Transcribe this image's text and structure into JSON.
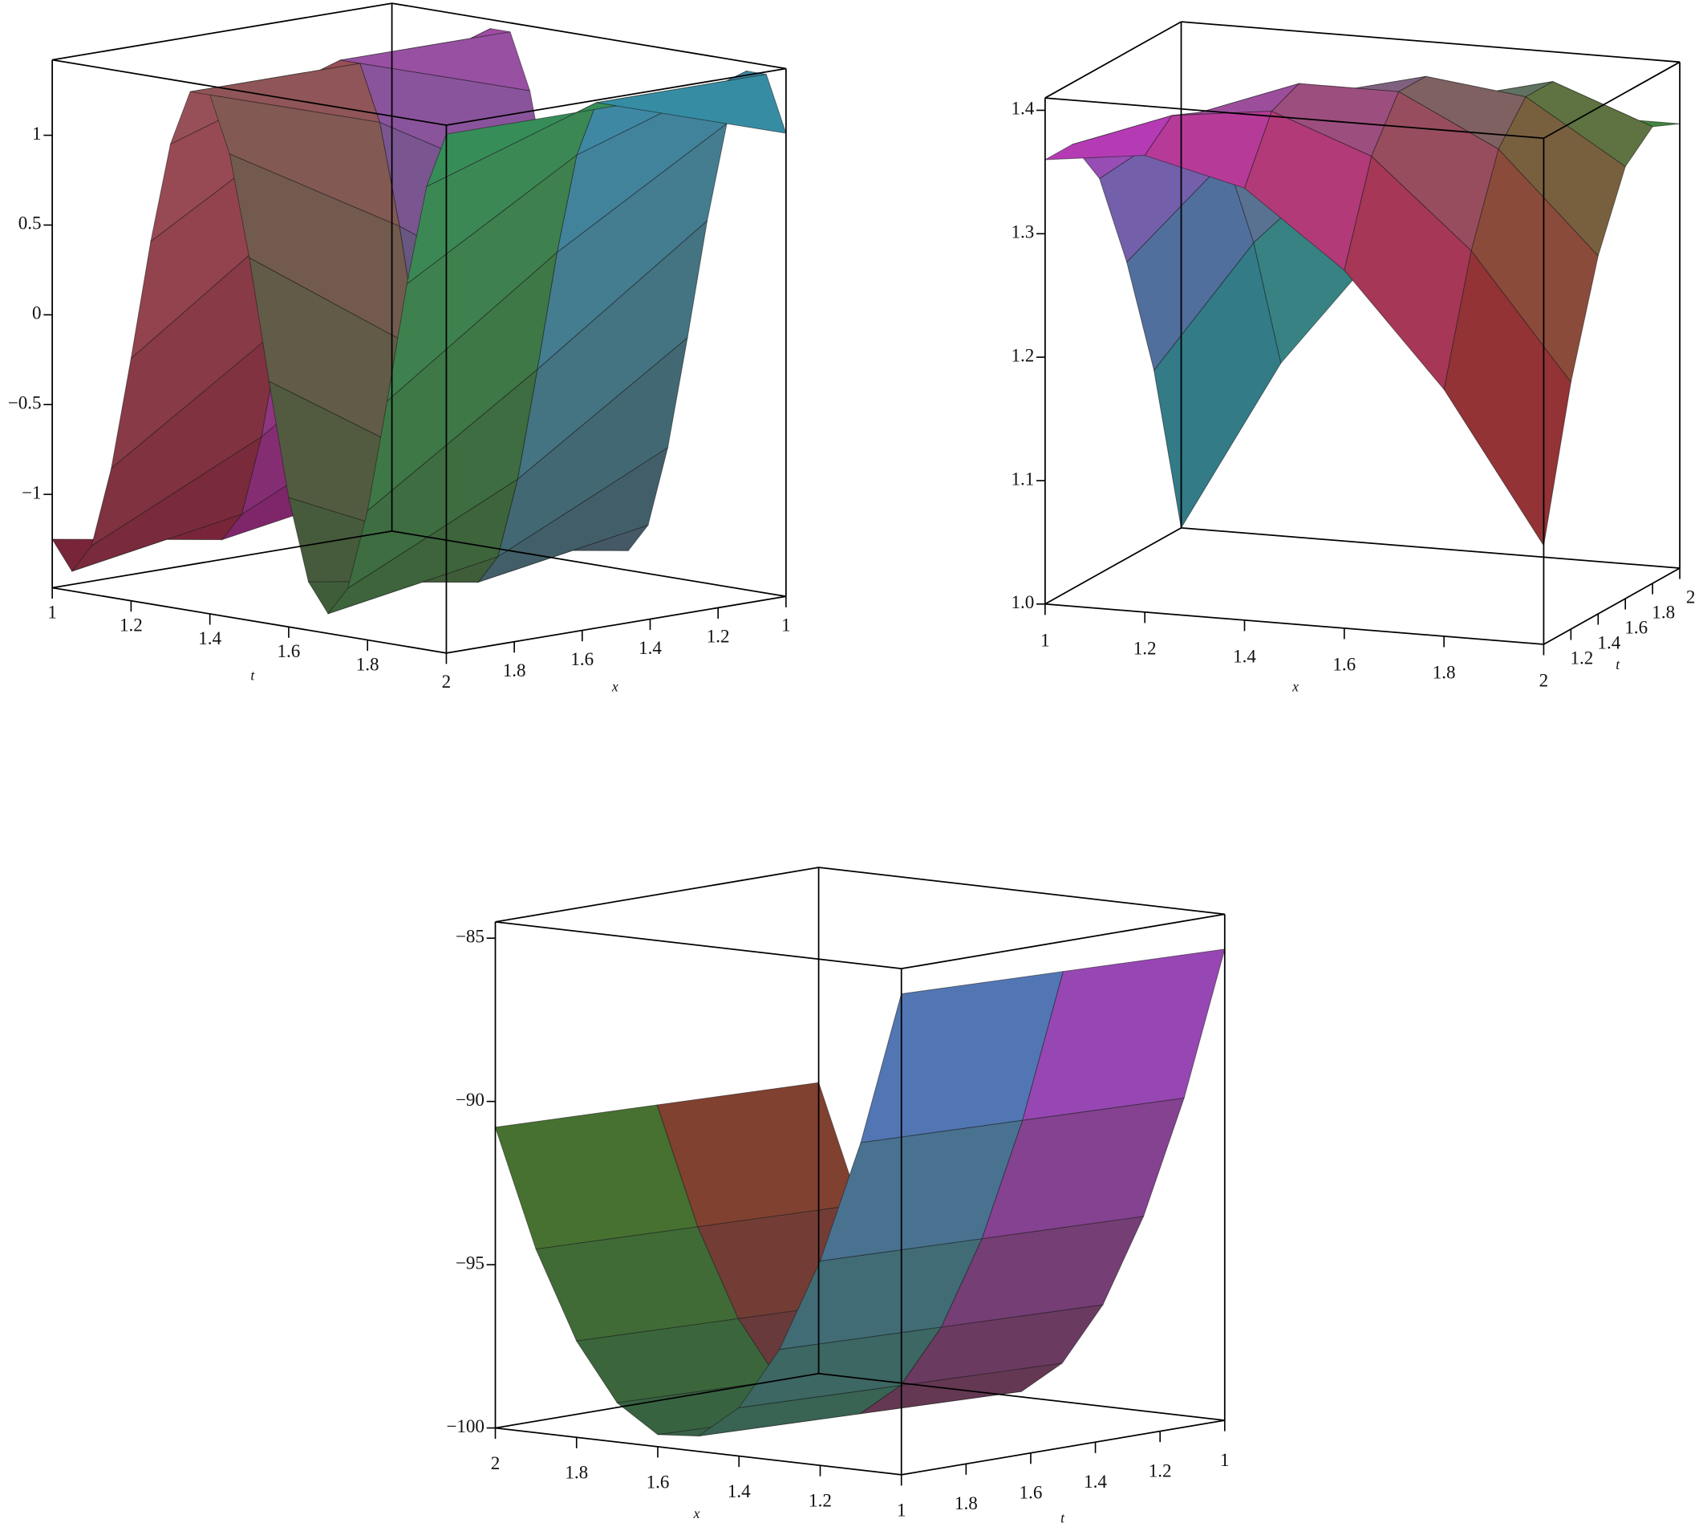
{
  "chart_data": [
    {
      "type": "surface",
      "shading": "xyz",
      "x_label": "x",
      "t_label": "t",
      "x": [
        1,
        1.5,
        2
      ],
      "t": [
        1,
        1.05,
        1.1,
        1.15,
        1.2,
        1.25,
        1.3,
        1.35,
        1.4,
        1.45,
        1.5,
        1.55,
        1.6,
        1.65,
        1.7,
        1.75,
        1.8,
        1.85,
        1.9,
        1.95,
        2
      ],
      "z": [
        [
          -1.25,
          -1.41,
          -1.25
        ],
        [
          -0.8,
          -1.25,
          -1.41
        ],
        [
          -0.17,
          -0.8,
          -1.25
        ],
        [
          0.5,
          -0.17,
          -0.8
        ],
        [
          1.06,
          0.5,
          -0.17
        ],
        [
          1.37,
          1.06,
          0.5
        ],
        [
          1.37,
          1.37,
          1.06
        ],
        [
          1.06,
          1.37,
          1.37
        ],
        [
          0.5,
          1.06,
          1.37
        ],
        [
          -0.17,
          0.5,
          1.06
        ],
        [
          -0.8,
          -0.17,
          0.5
        ],
        [
          -1.25,
          -0.8,
          -0.17
        ],
        [
          -1.41,
          -1.25,
          -0.8
        ],
        [
          -1.25,
          -1.41,
          -1.25
        ],
        [
          -0.8,
          -1.25,
          -1.41
        ],
        [
          -0.17,
          -0.8,
          -1.25
        ],
        [
          0.5,
          -0.17,
          -0.8
        ],
        [
          1.06,
          0.5,
          -0.17
        ],
        [
          1.37,
          1.06,
          0.5
        ],
        [
          1.37,
          1.37,
          1.06
        ],
        [
          1.06,
          1.37,
          1.37
        ]
      ],
      "xlim": [
        1,
        2
      ],
      "tlim": [
        1,
        2
      ],
      "zlim": [
        -1.52,
        1.42
      ],
      "xticks": [
        1,
        1.2,
        1.4,
        1.6,
        1.8,
        2
      ],
      "tticks": [
        1,
        1.2,
        1.4,
        1.6,
        1.8
      ],
      "zticks": [
        {
          "value": -1,
          "label": "−1"
        },
        {
          "value": -0.5,
          "label": "−0.5"
        },
        0,
        0.5,
        1
      ]
    },
    {
      "type": "surface",
      "shading": "xyz",
      "x_label": "x",
      "t_label": "t",
      "x": [
        1,
        1.2,
        1.4,
        1.6,
        1.8,
        2
      ],
      "t": [
        1,
        1.2,
        1.4,
        1.6,
        1.8,
        2
      ],
      "z": [
        [
          1.36,
          1.37,
          1.35,
          1.29,
          1.2,
          1.08
        ],
        [
          1.36,
          1.39,
          1.4,
          1.37,
          1.3,
          1.2
        ],
        [
          1.32,
          1.38,
          1.41,
          1.41,
          1.37,
          1.29
        ],
        [
          1.24,
          1.33,
          1.39,
          1.41,
          1.4,
          1.35
        ],
        [
          1.14,
          1.25,
          1.33,
          1.38,
          1.4,
          1.37
        ],
        [
          1,
          1.14,
          1.24,
          1.32,
          1.36,
          1.36
        ]
      ],
      "xlim": [
        1,
        2
      ],
      "tlim": [
        1,
        2
      ],
      "zlim": [
        1,
        1.41
      ],
      "xticks": [
        1,
        1.2,
        1.4,
        1.6,
        1.8,
        2
      ],
      "tticks": [
        1.2,
        1.4,
        1.6,
        1.8,
        2
      ],
      "zticks": [
        {
          "value": 1,
          "label": "1.0"
        },
        1.1,
        1.2,
        1.3,
        1.4
      ]
    },
    {
      "type": "surface",
      "shading": "xyz",
      "x_label": "x",
      "t_label": "t",
      "x": [
        1,
        1.1,
        1.2,
        1.3,
        1.4,
        1.5,
        1.6,
        1.7,
        1.8,
        1.9,
        2
      ],
      "t": [
        1,
        1.5,
        2
      ],
      "z": [
        [
          -85.57,
          -90.27,
          -94.04,
          -96.89,
          -98.82,
          -99.83,
          -99.93,
          -99.1,
          -97.35,
          -94.68,
          -91.09
        ],
        [
          -85.42,
          -90.12,
          -93.89,
          -96.74,
          -98.67,
          -99.68,
          -99.78,
          -98.95,
          -97.2,
          -94.53,
          -90.94
        ],
        [
          -85.27,
          -89.97,
          -93.74,
          -96.59,
          -98.52,
          -99.53,
          -99.63,
          -98.8,
          -97.05,
          -94.38,
          -90.79
        ]
      ],
      "xlim": [
        1,
        2
      ],
      "tlim": [
        1,
        2
      ],
      "zlim": [
        -100,
        -84.5
      ],
      "xticks": [
        1,
        1.2,
        1.4,
        1.6,
        1.8,
        2
      ],
      "tticks": [
        1,
        1.2,
        1.4,
        1.6,
        1.8
      ],
      "zticks": [
        {
          "value": -100,
          "label": "−100"
        },
        {
          "value": -95,
          "label": "−95"
        },
        {
          "value": -90,
          "label": "−90"
        },
        {
          "value": -85,
          "label": "−85"
        }
      ]
    }
  ]
}
